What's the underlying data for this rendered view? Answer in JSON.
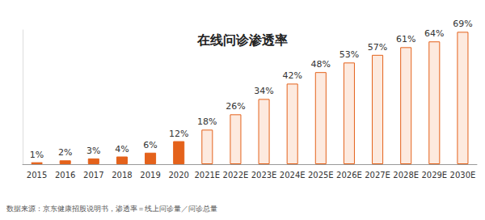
{
  "chart_data": {
    "type": "bar",
    "title": "在线问诊渗透率",
    "categories": [
      "2015",
      "2016",
      "2017",
      "2018",
      "2019",
      "2020",
      "2021E",
      "2022E",
      "2023E",
      "2024E",
      "2025E",
      "2026E",
      "2027E",
      "2028E",
      "2029E",
      "2030E"
    ],
    "values": [
      1,
      2,
      3,
      4,
      6,
      12,
      18,
      26,
      34,
      42,
      48,
      53,
      57,
      61,
      64,
      69
    ],
    "value_labels": [
      "1%",
      "2%",
      "3%",
      "4%",
      "6%",
      "12%",
      "18%",
      "26%",
      "34%",
      "42%",
      "48%",
      "53%",
      "57%",
      "61%",
      "64%",
      "69%"
    ],
    "color": "#e4621b",
    "colors": [
      "#e4621b",
      "#e4621b",
      "#e4621b",
      "#e4621b",
      "#e4621b",
      "#e4621b",
      "#fdeadf",
      "#fdeadf",
      "#fdeadf",
      "#fdeadf",
      "#fdeadf",
      "#fdeadf",
      "#fdeadf",
      "#fdeadf",
      "#fdeadf",
      "#fdeadf"
    ],
    "ylim": [
      0,
      70
    ],
    "grid": false,
    "data_labels": true,
    "tick_labels": "x",
    "annotations": [
      "数据来源：京东健康招股说明书，渗透率＝线上问诊量／问诊总量"
    ]
  }
}
